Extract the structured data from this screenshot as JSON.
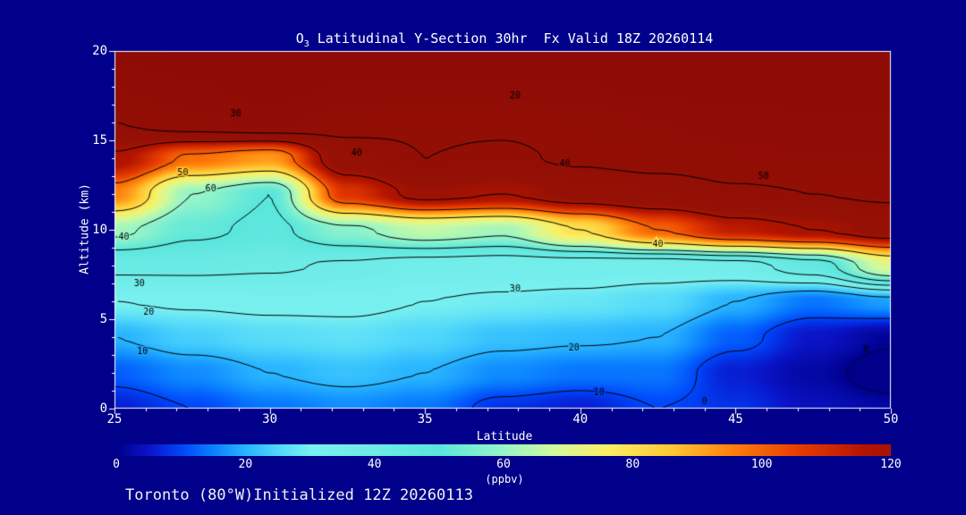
{
  "background": "#00008B",
  "text_color": "#FFFFFF",
  "title": {
    "prefix": "O",
    "subscript": "3",
    "rest": " Latitudinal Y-Section 30hr  Fx Valid 18Z 20260114"
  },
  "footer": "Toronto (80°W)Initialized 12Z 20260113",
  "chart_data": {
    "type": "heatmap",
    "title": "O3 Latitudinal Y-Section 30hr  Fx Valid 18Z 20260114",
    "xlabel": "Latitude",
    "ylabel": "Altitude (km)",
    "xlim": [
      25,
      50
    ],
    "ylim": [
      0,
      20
    ],
    "xticks": [
      25,
      30,
      35,
      40,
      45,
      50
    ],
    "yticks": [
      0,
      5,
      10,
      15,
      20
    ],
    "x_lat": [
      25,
      27.5,
      30,
      32.5,
      35,
      37.5,
      40,
      42.5,
      45,
      47.5,
      50
    ],
    "y_alt_km": [
      0,
      2,
      4,
      6,
      8,
      10,
      12,
      14,
      16,
      18,
      20
    ],
    "values_ppbv": [
      [
        6,
        10,
        14,
        16,
        14,
        8,
        6,
        10,
        8,
        4,
        2
      ],
      [
        12,
        16,
        20,
        22,
        20,
        16,
        14,
        14,
        6,
        2,
        -3
      ],
      [
        20,
        24,
        26,
        27,
        25,
        22,
        21,
        20,
        12,
        5,
        1
      ],
      [
        30,
        31,
        32,
        32,
        30,
        29,
        28,
        26,
        20,
        14,
        18
      ],
      [
        42,
        42,
        41,
        39,
        36,
        35,
        35,
        34,
        36,
        45,
        70
      ],
      [
        62,
        52,
        48,
        58,
        66,
        62,
        80,
        100,
        114,
        120,
        128
      ],
      [
        95,
        60,
        50,
        108,
        124,
        120,
        128,
        132,
        138,
        140,
        142
      ],
      [
        118,
        98,
        92,
        130,
        140,
        138,
        142,
        145,
        148,
        150,
        150
      ],
      [
        140,
        148,
        152,
        146,
        142,
        142,
        146,
        150,
        152,
        154,
        154
      ],
      [
        150,
        154,
        157,
        154,
        154,
        154,
        154,
        157,
        157,
        158,
        158
      ],
      [
        157,
        160,
        160,
        160,
        160,
        160,
        160,
        160,
        160,
        160,
        160
      ]
    ],
    "contour_levels": [
      0,
      10,
      20,
      30,
      40,
      50,
      60,
      80,
      100,
      120,
      140
    ],
    "contour_labels": [
      {
        "v": "30",
        "lat": 28.9,
        "alt": 16.5
      },
      {
        "v": "20",
        "lat": 37.9,
        "alt": 17.5
      },
      {
        "v": "40",
        "lat": 32.8,
        "alt": 14.3
      },
      {
        "v": "40",
        "lat": 39.5,
        "alt": 13.7
      },
      {
        "v": "50",
        "lat": 45.9,
        "alt": 13.0
      },
      {
        "v": "50",
        "lat": 27.2,
        "alt": 13.2
      },
      {
        "v": "60",
        "lat": 28.1,
        "alt": 12.3
      },
      {
        "v": "40",
        "lat": 25.3,
        "alt": 9.6
      },
      {
        "v": "30",
        "lat": 25.8,
        "alt": 7.0
      },
      {
        "v": "20",
        "lat": 26.1,
        "alt": 5.4
      },
      {
        "v": "10",
        "lat": 25.9,
        "alt": 3.2
      },
      {
        "v": "40",
        "lat": 42.5,
        "alt": 9.2
      },
      {
        "v": "30",
        "lat": 37.9,
        "alt": 6.7
      },
      {
        "v": "20",
        "lat": 39.8,
        "alt": 3.4
      },
      {
        "v": "10",
        "lat": 40.6,
        "alt": 0.9
      },
      {
        "v": "0",
        "lat": 49.2,
        "alt": 3.3
      },
      {
        "v": "0",
        "lat": 44.0,
        "alt": 0.4
      }
    ],
    "colorbar": {
      "label": "(ppbv)",
      "min": 0,
      "max": 120,
      "ticks": [
        0,
        20,
        40,
        60,
        80,
        100,
        120
      ],
      "colormap": [
        [
          -20,
          "#000080"
        ],
        [
          0,
          "#00008C"
        ],
        [
          5,
          "#0A14C8"
        ],
        [
          10,
          "#0046FA"
        ],
        [
          15,
          "#0A82FF"
        ],
        [
          20,
          "#28B4FF"
        ],
        [
          25,
          "#50D7FA"
        ],
        [
          30,
          "#78F0F0"
        ],
        [
          40,
          "#6EEBE6"
        ],
        [
          50,
          "#5AE6DC"
        ],
        [
          60,
          "#96F5C8"
        ],
        [
          68,
          "#D2FA9B"
        ],
        [
          76,
          "#FAF064"
        ],
        [
          86,
          "#FFC832"
        ],
        [
          96,
          "#FF7D0A"
        ],
        [
          106,
          "#E63C00"
        ],
        [
          116,
          "#B41400"
        ],
        [
          126,
          "#961105"
        ],
        [
          170,
          "#8C0A05"
        ]
      ]
    }
  }
}
